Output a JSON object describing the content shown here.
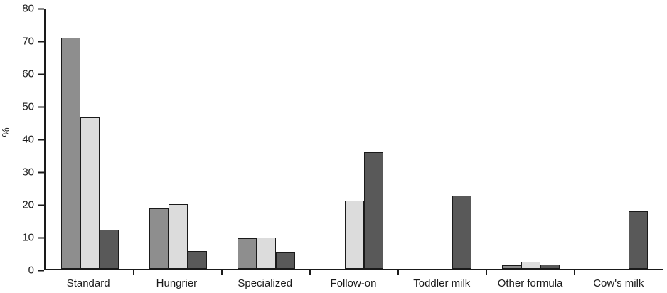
{
  "chart_data": {
    "type": "bar",
    "title": "",
    "xlabel": "",
    "ylabel": "%",
    "ylim": [
      0,
      80
    ],
    "yticks": [
      0,
      10,
      20,
      30,
      40,
      50,
      60,
      70,
      80
    ],
    "grid": false,
    "legend_position": "none",
    "axis_color": "#1a1a1a",
    "bar_border_color": "#1a1a1a",
    "categories": [
      "Standard",
      "Hungrier",
      "Specialized",
      "Follow-on",
      "Toddler milk",
      "Other formula",
      "Cow's milk"
    ],
    "series": [
      {
        "name": "series-1-medium-gray",
        "color": "#8e8e8e",
        "values": [
          71,
          18.5,
          9.5,
          0,
          0,
          1,
          0
        ]
      },
      {
        "name": "series-2-light-gray",
        "color": "#dcdcdc",
        "values": [
          46.5,
          20,
          9.7,
          21,
          0,
          2.2,
          0
        ]
      },
      {
        "name": "series-3-dark-gray",
        "color": "#595959",
        "values": [
          12,
          5.5,
          5,
          35.8,
          22.5,
          1.3,
          17.8
        ]
      }
    ]
  }
}
